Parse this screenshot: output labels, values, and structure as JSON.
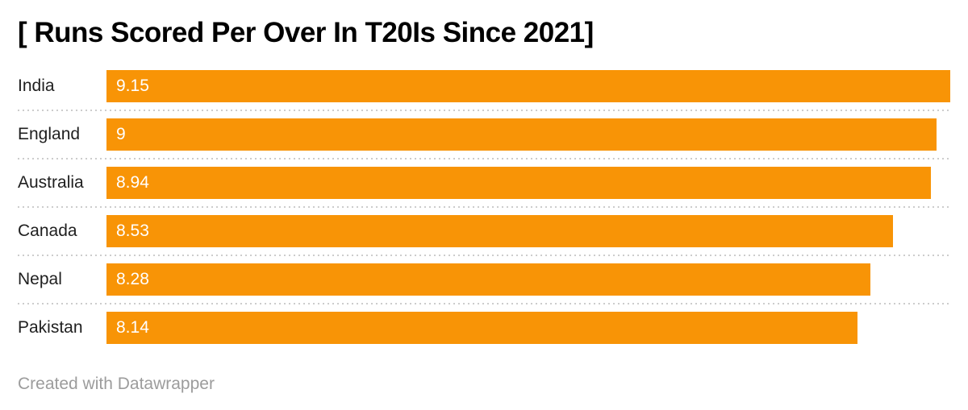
{
  "title": "[ Runs Scored Per Over In T20Is Since 2021]",
  "footer": {
    "attribution": "Created with Datawrapper"
  },
  "colors": {
    "bar": "#F89406",
    "title": "#000000",
    "category_label": "#1f1f1f",
    "value_text": "#ffffff",
    "separator": "#cccccc",
    "footer_text": "#9c9c9c",
    "background": "#ffffff"
  },
  "chart_data": {
    "type": "bar",
    "orientation": "horizontal",
    "title": "[ Runs Scored Per Over In T20Is Since 2021]",
    "categories": [
      "India",
      "England",
      "Australia",
      "Canada",
      "Nepal",
      "Pakistan"
    ],
    "values": [
      9.15,
      9,
      8.94,
      8.53,
      8.28,
      8.14
    ],
    "value_labels": [
      "9.15",
      "9",
      "8.94",
      "8.53",
      "8.28",
      "8.14"
    ],
    "xlabel": "",
    "ylabel": "",
    "xlim": [
      0,
      9.15
    ],
    "grid": false,
    "legend": false,
    "value_label_position": "inside-start"
  }
}
